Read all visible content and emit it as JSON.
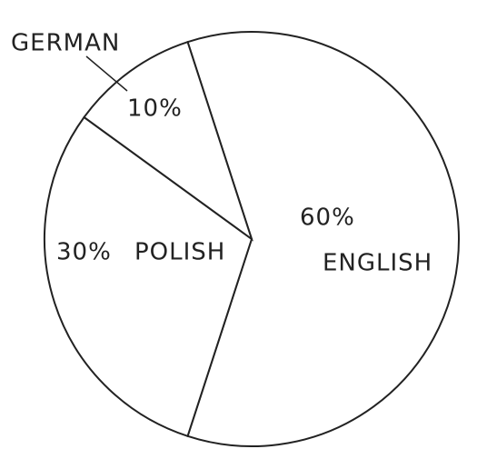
{
  "chart_data": {
    "type": "pie",
    "categories": [
      "ENGLISH",
      "POLISH",
      "GERMAN"
    ],
    "values": [
      60,
      30,
      10
    ],
    "value_labels": [
      "60%",
      "30%",
      "10%"
    ],
    "color": "#ffffff"
  }
}
